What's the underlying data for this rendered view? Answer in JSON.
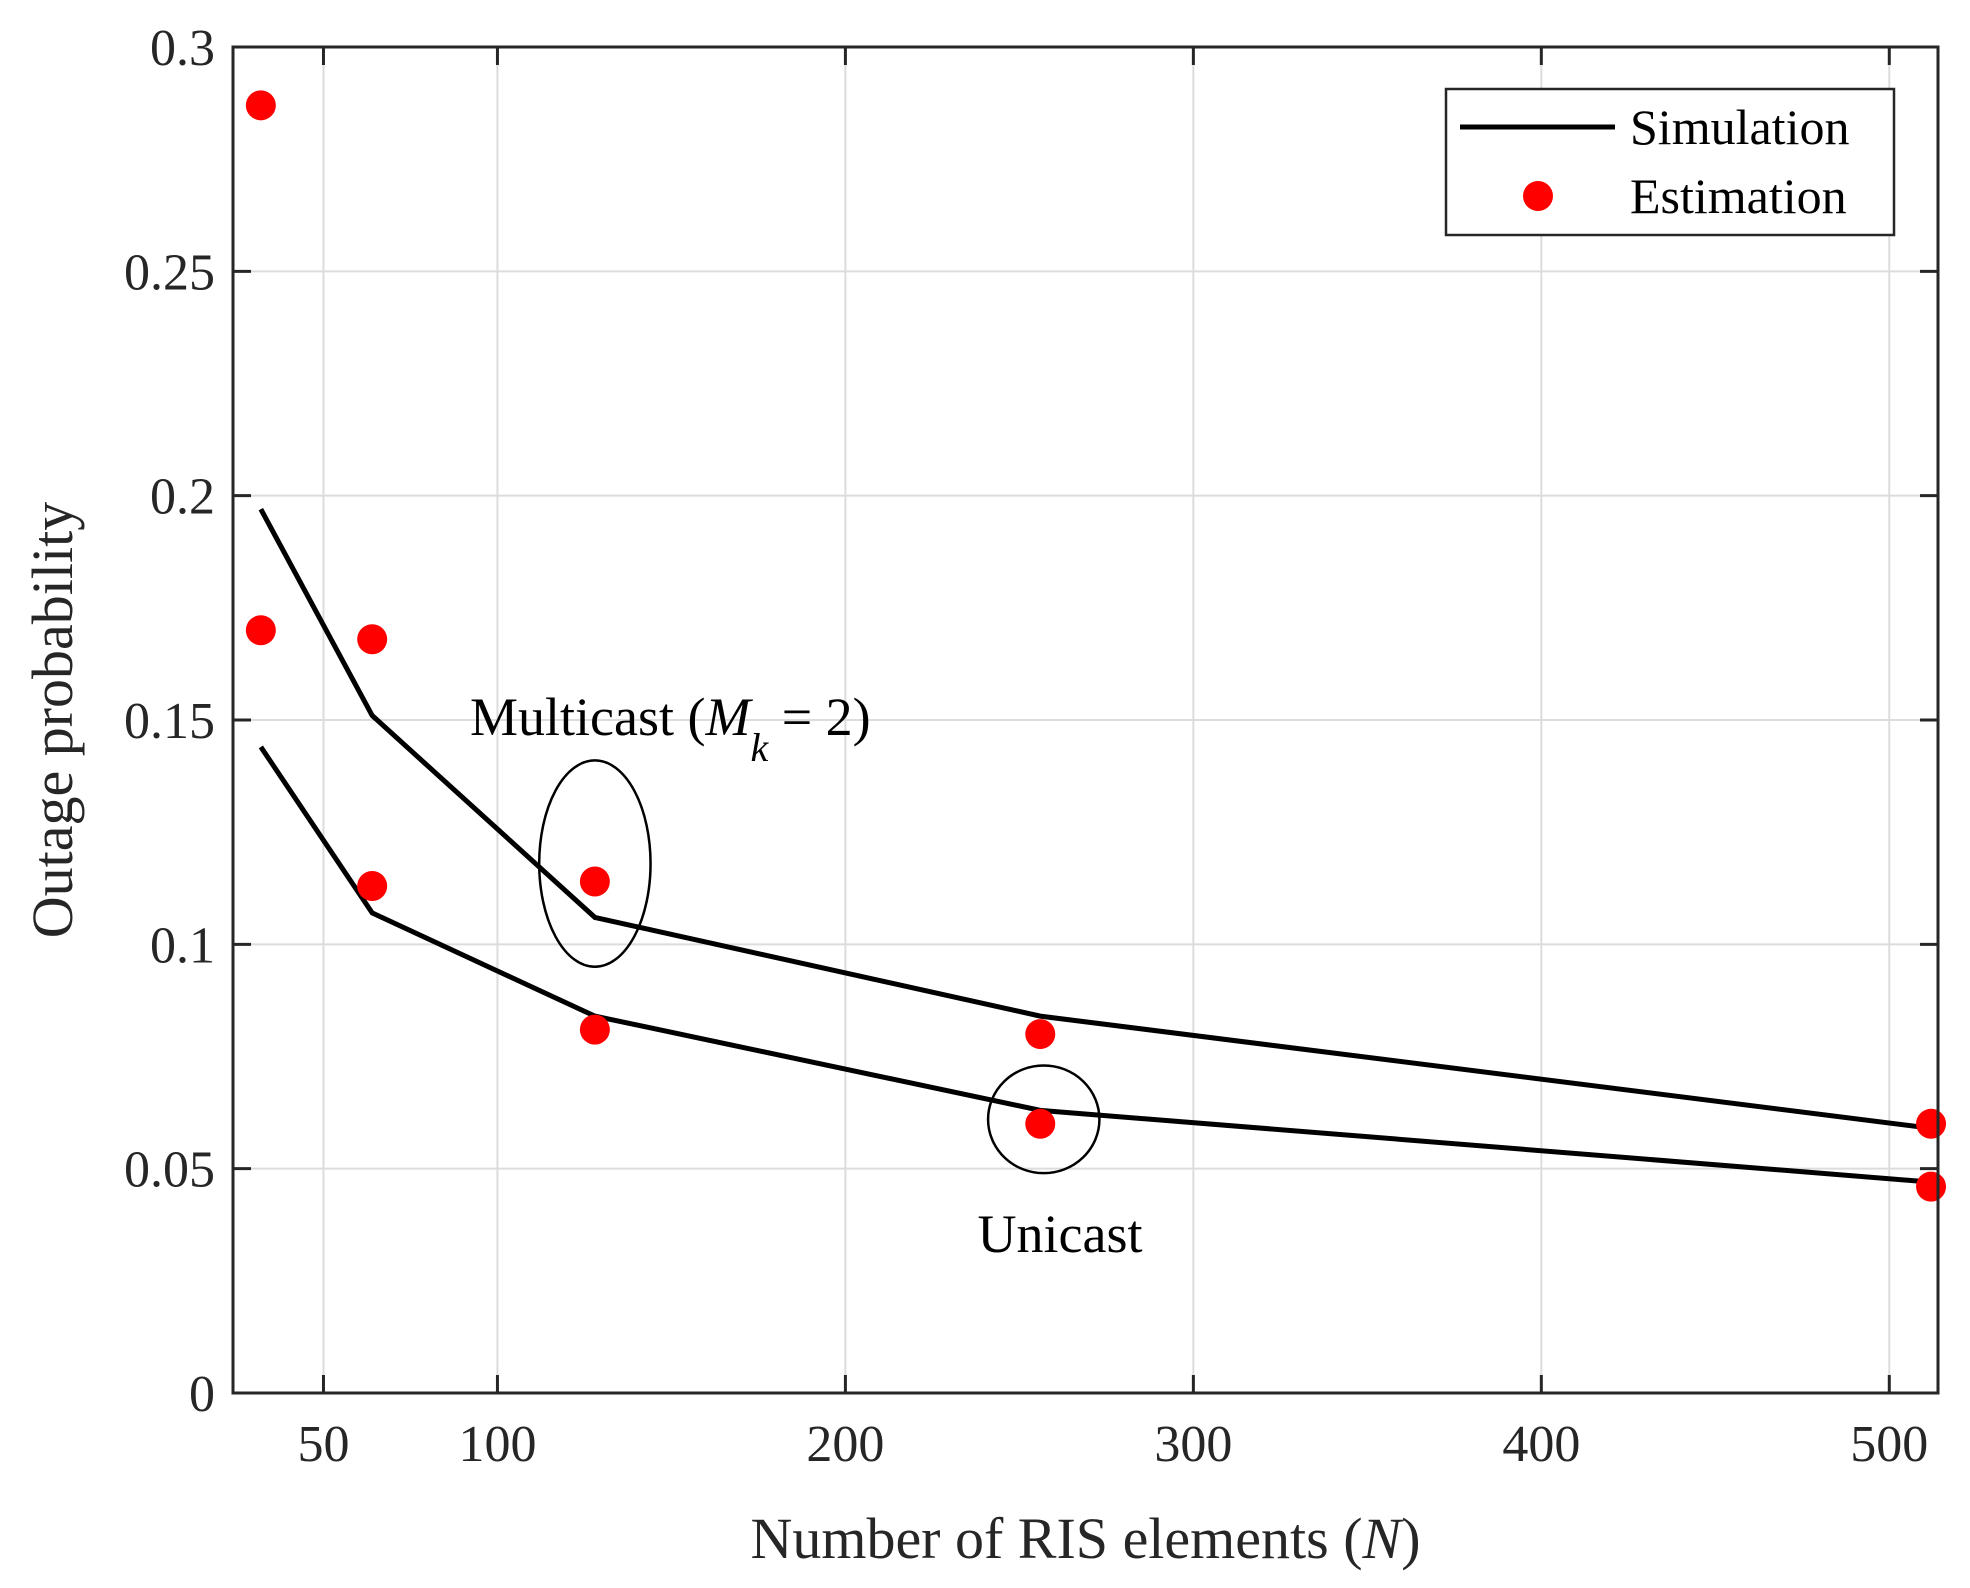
{
  "chart_data": {
    "type": "line",
    "title": "",
    "xlabel": {
      "prefix": "Number of RIS elements (",
      "var": "N",
      "suffix": ")"
    },
    "ylabel": "Outage probability",
    "xlim": [
      24,
      514
    ],
    "ylim": [
      0,
      0.3
    ],
    "xticks": [
      50,
      100,
      200,
      300,
      400,
      500
    ],
    "xtick_labels": [
      "50",
      "100",
      "200",
      "300",
      "400",
      "500"
    ],
    "yticks": [
      0,
      0.05,
      0.1,
      0.15,
      0.2,
      0.25,
      0.3
    ],
    "ytick_labels": [
      "0",
      "0.05",
      "0.1",
      "0.15",
      "0.2",
      "0.25",
      "0.3"
    ],
    "grid": true,
    "legend": {
      "position": "top-right",
      "entries": [
        {
          "label": "Simulation",
          "style": "line",
          "color": "#000000"
        },
        {
          "label": "Estimation",
          "style": "marker",
          "color": "#ff0000"
        }
      ]
    },
    "series": [
      {
        "name": "Simulation (Multicast)",
        "style": "line",
        "color": "#000000",
        "x": [
          32,
          64,
          128,
          256,
          512
        ],
        "y": [
          0.197,
          0.151,
          0.106,
          0.084,
          0.059
        ]
      },
      {
        "name": "Simulation (Unicast)",
        "style": "line",
        "color": "#000000",
        "x": [
          32,
          64,
          128,
          256,
          512
        ],
        "y": [
          0.144,
          0.107,
          0.084,
          0.063,
          0.047
        ]
      },
      {
        "name": "Estimation (Multicast)",
        "style": "marker",
        "color": "#ff0000",
        "x": [
          32,
          64,
          128,
          256,
          512
        ],
        "y": [
          0.287,
          0.168,
          0.114,
          0.08,
          0.06
        ]
      },
      {
        "name": "Estimation (Unicast)",
        "style": "marker",
        "color": "#ff0000",
        "x": [
          32,
          64,
          128,
          256,
          512
        ],
        "y": [
          0.17,
          0.113,
          0.081,
          0.06,
          0.046
        ]
      }
    ],
    "annotations": [
      {
        "name": "multicast-annotation",
        "prefix": "Multicast (",
        "var": "M",
        "sub": "k",
        "suffix": " = 2)",
        "ellipse_center": [
          128,
          0.118
        ],
        "ellipse_radii": [
          16,
          0.023
        ]
      },
      {
        "name": "unicast-annotation",
        "text": "Unicast",
        "ellipse_center": [
          257,
          0.061
        ],
        "ellipse_radii": [
          16,
          0.012
        ]
      }
    ]
  }
}
